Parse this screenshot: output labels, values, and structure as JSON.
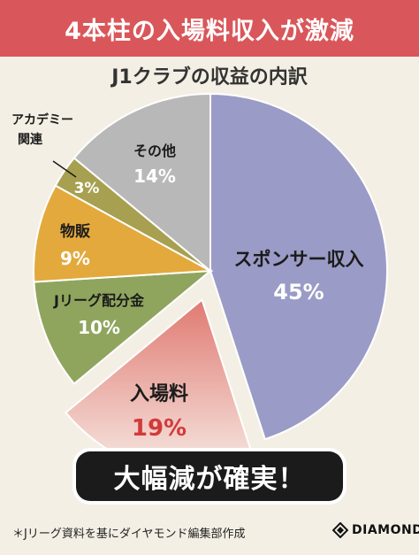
{
  "header": {
    "title": "4本柱の入場料収入が激減"
  },
  "chart_data": {
    "type": "pie",
    "title": "J1クラブの収益の内訳",
    "slices": [
      {
        "label": "スポンサー収入",
        "value": 45,
        "value_label": "45%",
        "color": "#9a9bc6"
      },
      {
        "label": "入場料",
        "value": 19,
        "value_label": "19%",
        "color": "#e07a72"
      },
      {
        "label": "Jリーグ配分金",
        "value": 10,
        "value_label": "10%",
        "color": "#8fa55e"
      },
      {
        "label": "物販",
        "value": 9,
        "value_label": "9%",
        "color": "#e3a93c"
      },
      {
        "label": "アカデミー関連",
        "value": 3,
        "value_label": "3%",
        "color": "#a6a050"
      },
      {
        "label": "その他",
        "value": 14,
        "value_label": "14%",
        "color": "#b8b8b8"
      }
    ],
    "exploded_slice": "入場料"
  },
  "callout": {
    "text": "大幅減が確実！"
  },
  "footer": {
    "source": "＊Jリーグ資料を基にダイヤモンド編集部作成",
    "brand": "DIAMOND"
  }
}
